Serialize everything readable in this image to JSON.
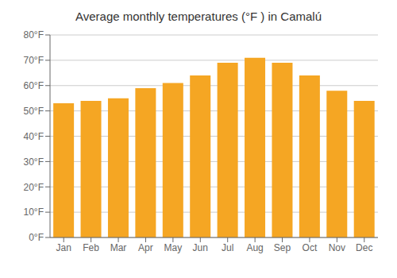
{
  "chart_data": {
    "type": "bar",
    "title": "Average monthly temperatures (°F ) in Camalú",
    "categories": [
      "Jan",
      "Feb",
      "Mar",
      "Apr",
      "May",
      "Jun",
      "Jul",
      "Aug",
      "Sep",
      "Oct",
      "Nov",
      "Dec"
    ],
    "values": [
      53,
      54,
      55,
      59,
      61,
      64,
      69,
      71,
      69,
      64,
      58,
      54
    ],
    "color": "#F5A623",
    "ylim": [
      0,
      80
    ],
    "yticks": [
      {
        "value": 0,
        "label": "0°F"
      },
      {
        "value": 10,
        "label": "10°F"
      },
      {
        "value": 20,
        "label": "20°F"
      },
      {
        "value": 30,
        "label": "30°F"
      },
      {
        "value": 40,
        "label": "40°F"
      },
      {
        "value": 50,
        "label": "50°F"
      },
      {
        "value": 60,
        "label": "60°F"
      },
      {
        "value": 70,
        "label": "70°F"
      },
      {
        "value": 80,
        "label": "80°F"
      }
    ],
    "grid": true
  }
}
